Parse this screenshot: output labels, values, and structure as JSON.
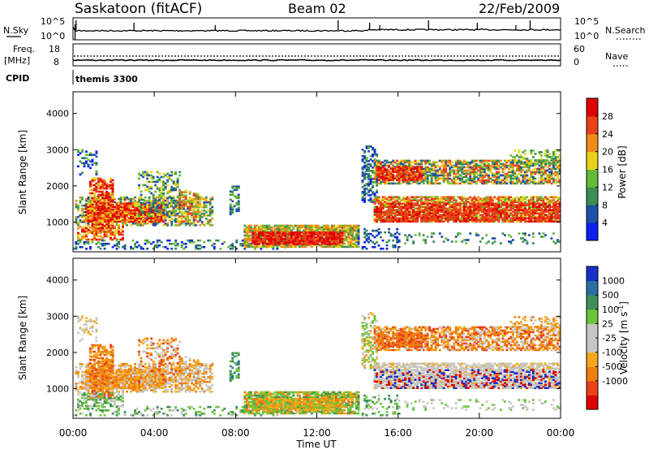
{
  "header": {
    "station": "Saskatoon (fitACF)",
    "beam": "Beam 02",
    "date": "22/Feb/2009"
  },
  "left_labels": {
    "nsky": "N.Sky",
    "freq_top": "Freq.",
    "freq_unit": "[MHz]",
    "cpid": "CPID"
  },
  "right_labels": {
    "nsearch": "N.Search",
    "nave": "Nave"
  },
  "cpid_value": "themis 3300",
  "colors": {
    "power": [
      "#0b20f0",
      "#1f4fa8",
      "#3a8d55",
      "#67b938",
      "#e9d21c",
      "#f08b18",
      "#e8411a",
      "#e00000"
    ],
    "velocity": [
      "#e00000",
      "#e8411a",
      "#f07f10",
      "#f5a91a",
      "#c6c6c2",
      "#c6c6c2",
      "#6ac53a",
      "#3f8e5a",
      "#2a6fa2",
      "#1731c8"
    ]
  },
  "chart_data": [
    {
      "type": "line",
      "panel": "noise",
      "left_ticks": [
        "10^5",
        "10^0"
      ],
      "right_ticks": [
        "10^5",
        "10^0"
      ],
      "series": [
        {
          "name": "N.Sky"
        },
        {
          "name": "N.Search"
        }
      ]
    },
    {
      "type": "line",
      "panel": "freq-nave",
      "left_ticks": [
        "18",
        "8"
      ],
      "right_ticks": [
        "60",
        "0"
      ],
      "series": [
        {
          "name": "Nave"
        }
      ]
    },
    {
      "type": "heatmap",
      "panel": "power",
      "ylabel": "Slant Range [km]",
      "y_ticks": [
        "4000",
        "3000",
        "2000",
        "1000"
      ],
      "y_values": [
        4000,
        3000,
        2000,
        1000
      ],
      "ylim": [
        180,
        4600
      ],
      "colorbar_label": "Power [dB]",
      "colorbar_ticks": [
        "28",
        "24",
        "20",
        "16",
        "12",
        "8",
        "4"
      ],
      "colorbar_values": [
        28,
        24,
        20,
        16,
        12,
        8,
        4
      ],
      "colorbar_range": [
        0,
        32
      ]
    },
    {
      "type": "heatmap",
      "panel": "velocity",
      "ylabel": "Slant Range [km]",
      "y_ticks": [
        "4000",
        "3000",
        "2000",
        "1000"
      ],
      "y_values": [
        4000,
        3000,
        2000,
        1000
      ],
      "ylim": [
        180,
        4600
      ],
      "colorbar_label": "Velocity [m s",
      "colorbar_label_sup": "-1",
      "colorbar_label_end": "]",
      "colorbar_ticks": [
        "1000",
        "500",
        "100",
        "25",
        "-25",
        "-100",
        "-500",
        "-1000"
      ],
      "xlabel": "Time UT",
      "x_ticks": [
        "00:00",
        "04:00",
        "08:00",
        "12:00",
        "16:00",
        "20:00",
        "00:00"
      ],
      "x_values": [
        0,
        4,
        8,
        12,
        16,
        20,
        24
      ],
      "xlim": [
        0,
        24
      ]
    }
  ]
}
